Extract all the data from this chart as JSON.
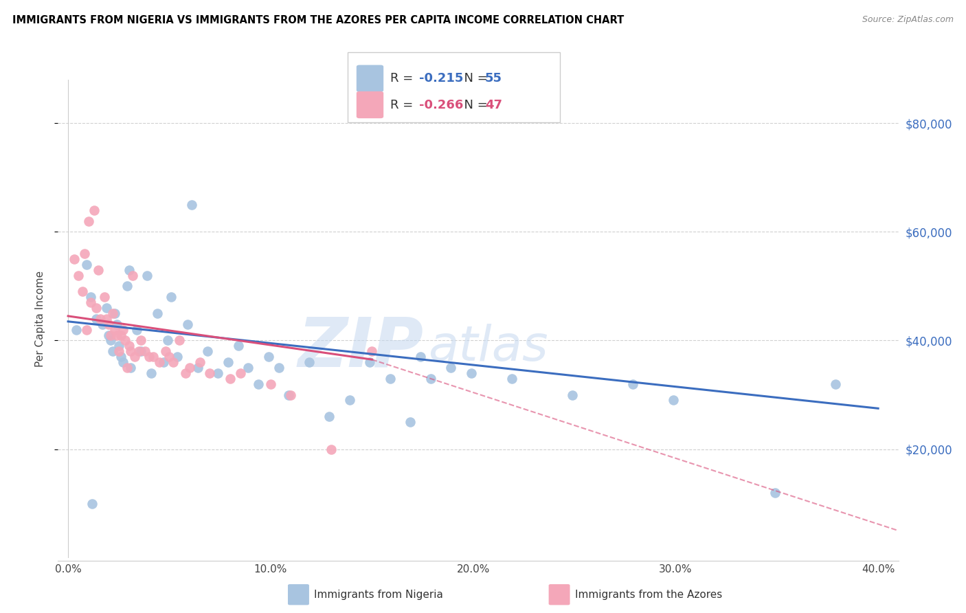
{
  "title": "IMMIGRANTS FROM NIGERIA VS IMMIGRANTS FROM THE AZORES PER CAPITA INCOME CORRELATION CHART",
  "source": "Source: ZipAtlas.com",
  "ylabel": "Per Capita Income",
  "ytick_labels": [
    "$20,000",
    "$40,000",
    "$60,000",
    "$80,000"
  ],
  "ytick_vals": [
    20000,
    40000,
    60000,
    80000
  ],
  "ylim": [
    0,
    88000
  ],
  "xlim": [
    -0.5,
    41.0
  ],
  "xtick_vals": [
    0,
    10,
    20,
    30,
    40
  ],
  "xtick_labels": [
    "0.0%",
    "10.0%",
    "20.0%",
    "30.0%",
    "40.0%"
  ],
  "nigeria_R": "-0.215",
  "nigeria_N": "55",
  "azores_R": "-0.266",
  "azores_N": "47",
  "nigeria_color": "#a8c4e0",
  "azores_color": "#f4a7b9",
  "nigeria_line_color": "#3b6dbf",
  "azores_line_color": "#d94f7a",
  "watermark_zip": "ZIP",
  "watermark_atlas": "atlas",
  "nigeria_scatter_x": [
    0.4,
    0.9,
    1.1,
    1.4,
    1.7,
    1.9,
    2.0,
    2.1,
    2.2,
    2.3,
    2.4,
    2.5,
    2.6,
    2.7,
    2.9,
    3.0,
    3.1,
    3.4,
    3.6,
    3.9,
    4.1,
    4.4,
    4.7,
    4.9,
    5.1,
    5.4,
    5.9,
    6.4,
    6.9,
    7.4,
    7.9,
    8.4,
    8.9,
    9.4,
    9.9,
    10.4,
    10.9,
    11.9,
    12.9,
    13.9,
    14.9,
    15.9,
    16.9,
    17.9,
    18.9,
    19.9,
    21.9,
    24.9,
    27.9,
    29.9,
    34.9,
    37.9,
    1.2,
    6.1,
    17.4
  ],
  "nigeria_scatter_y": [
    42000,
    54000,
    48000,
    44000,
    43000,
    46000,
    41000,
    40000,
    38000,
    45000,
    43000,
    39000,
    37000,
    36000,
    50000,
    53000,
    35000,
    42000,
    38000,
    52000,
    34000,
    45000,
    36000,
    40000,
    48000,
    37000,
    43000,
    35000,
    38000,
    34000,
    36000,
    39000,
    35000,
    32000,
    37000,
    35000,
    30000,
    36000,
    26000,
    29000,
    36000,
    33000,
    25000,
    33000,
    35000,
    34000,
    33000,
    30000,
    32000,
    29000,
    12000,
    32000,
    10000,
    65000,
    37000
  ],
  "azores_scatter_x": [
    0.3,
    0.5,
    0.7,
    0.8,
    1.0,
    1.1,
    1.3,
    1.5,
    1.6,
    1.8,
    2.0,
    2.1,
    2.2,
    2.5,
    2.7,
    3.0,
    3.2,
    3.5,
    4.0,
    4.5,
    5.0,
    5.5,
    6.0,
    7.0,
    8.0,
    10.0,
    11.0,
    13.0,
    15.0,
    1.9,
    2.3,
    2.8,
    3.1,
    3.8,
    4.2,
    5.2,
    0.9,
    1.4,
    2.4,
    3.3,
    4.8,
    6.5,
    8.5,
    2.6,
    3.6,
    2.9,
    5.8
  ],
  "azores_scatter_y": [
    55000,
    52000,
    49000,
    56000,
    62000,
    47000,
    64000,
    53000,
    44000,
    48000,
    43000,
    41000,
    45000,
    38000,
    42000,
    39000,
    52000,
    38000,
    37000,
    36000,
    37000,
    40000,
    35000,
    34000,
    33000,
    32000,
    30000,
    20000,
    38000,
    44000,
    42000,
    40000,
    38000,
    38000,
    37000,
    36000,
    42000,
    46000,
    41000,
    37000,
    38000,
    36000,
    34000,
    41000,
    40000,
    35000,
    34000
  ],
  "background_color": "#ffffff",
  "grid_color": "#d0d0d0",
  "nigeria_line_x0": 0.0,
  "nigeria_line_y0": 43500,
  "nigeria_line_x1": 40.0,
  "nigeria_line_y1": 27500,
  "azores_line_x0": 0.0,
  "azores_line_y0": 44500,
  "azores_line_x1": 15.0,
  "azores_line_y1": 36500,
  "azores_dashed_x1": 41.0,
  "azores_dashed_y1": 5000
}
